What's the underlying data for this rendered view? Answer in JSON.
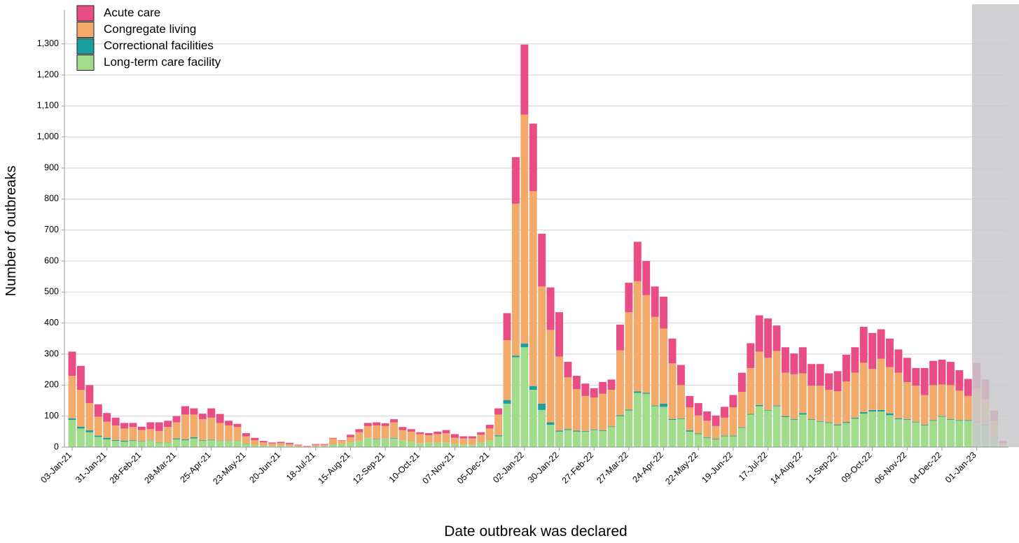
{
  "chart_data": {
    "type": "stacked-bar",
    "x_label": "Date outbreak was declared",
    "y_label": "Number of outbreaks",
    "categories": [
      "03-Jan-21",
      null,
      null,
      null,
      "31-Jan-21",
      null,
      null,
      null,
      "28-Feb-21",
      null,
      null,
      null,
      "28-Mar-21",
      null,
      null,
      null,
      "25-Apr-21",
      null,
      null,
      null,
      "23-May-21",
      null,
      null,
      null,
      "20-Jun-21",
      null,
      null,
      null,
      "18-Jul-21",
      null,
      null,
      null,
      "15-Aug-21",
      null,
      null,
      null,
      "12-Sep-21",
      null,
      null,
      null,
      "10-Oct-21",
      null,
      null,
      null,
      "07-Nov-21",
      null,
      null,
      null,
      "05-Dec-21",
      null,
      null,
      null,
      "02-Jan-22",
      null,
      null,
      null,
      "30-Jan-22",
      null,
      null,
      null,
      "27-Feb-22",
      null,
      null,
      null,
      "27-Mar-22",
      null,
      null,
      null,
      "24-Apr-22",
      null,
      null,
      null,
      "22-May-22",
      null,
      null,
      null,
      "19-Jun-22",
      null,
      null,
      null,
      "17-Jul-22",
      null,
      null,
      null,
      "14-Aug-22",
      null,
      null,
      null,
      "11-Sep-22",
      null,
      null,
      null,
      "09-Oct-22",
      null,
      null,
      null,
      "06-Nov-22",
      null,
      null,
      null,
      "04-Dec-22",
      null,
      null,
      null,
      "01-Jan-23",
      null,
      null,
      null
    ],
    "series": [
      {
        "name": "Acute care",
        "color": "#ea4c86",
        "values": [
          78,
          77,
          58,
          40,
          28,
          25,
          18,
          13,
          11,
          22,
          28,
          20,
          20,
          27,
          20,
          18,
          30,
          29,
          15,
          10,
          10,
          8,
          5,
          3,
          4,
          4,
          2,
          1,
          2,
          2,
          2,
          2,
          8,
          10,
          10,
          10,
          9,
          10,
          10,
          8,
          6,
          7,
          8,
          10,
          12,
          7,
          7,
          8,
          12,
          20,
          87,
          150,
          226,
          218,
          170,
          137,
          143,
          50,
          43,
          40,
          30,
          38,
          33,
          83,
          95,
          127,
          110,
          98,
          103,
          80,
          65,
          37,
          40,
          30,
          34,
          35,
          40,
          62,
          80,
          117,
          127,
          82,
          82,
          67,
          84,
          70,
          70,
          53,
          65,
          86,
          82,
          116,
          116,
          95,
          92,
          75,
          78,
          57,
          87,
          78,
          80,
          75,
          66,
          55,
          82,
          63,
          33,
          8
        ]
      },
      {
        "name": "Congregate living",
        "color": "#f3ab6c",
        "values": [
          137,
          119,
          88,
          61,
          52,
          47,
          39,
          43,
          36,
          35,
          36,
          49,
          52,
          80,
          73,
          68,
          71,
          57,
          49,
          44,
          24,
          15,
          10,
          8,
          8,
          6,
          4,
          2,
          5,
          4,
          20,
          10,
          17,
          28,
          38,
          44,
          40,
          50,
          33,
          32,
          30,
          23,
          27,
          30,
          20,
          20,
          20,
          25,
          38,
          67,
          193,
          490,
          738,
          628,
          378,
          298,
          239,
          167,
          134,
          113,
          103,
          118,
          118,
          209,
          314,
          355,
          315,
          286,
          242,
          179,
          108,
          74,
          58,
          53,
          41,
          58,
          91,
          114,
          148,
          172,
          168,
          176,
          140,
          145,
          128,
          108,
          114,
          105,
          107,
          131,
          145,
          159,
          132,
          165,
          149,
          147,
          120,
          116,
          96,
          113,
          102,
          110,
          95,
          78,
          108,
          82,
          49,
          7
        ]
      },
      {
        "name": "Correctional facilities",
        "color": "#1a9e9e",
        "values": [
          5,
          6,
          6,
          4,
          5,
          3,
          3,
          2,
          1,
          1,
          1,
          1,
          3,
          3,
          4,
          2,
          2,
          1,
          1,
          1,
          1,
          0,
          0,
          0,
          0,
          0,
          0,
          0,
          0,
          0,
          0,
          0,
          0,
          0,
          0,
          1,
          0,
          2,
          0,
          0,
          0,
          0,
          0,
          0,
          0,
          0,
          0,
          0,
          0,
          3,
          12,
          5,
          12,
          12,
          20,
          8,
          3,
          3,
          3,
          2,
          2,
          2,
          2,
          3,
          3,
          5,
          3,
          2,
          10,
          3,
          2,
          4,
          2,
          2,
          2,
          2,
          2,
          2,
          2,
          4,
          2,
          2,
          3,
          2,
          5,
          2,
          2,
          2,
          3,
          3,
          3,
          5,
          5,
          5,
          6,
          3,
          2,
          2,
          2,
          2,
          2,
          2,
          2,
          2,
          2,
          3,
          1,
          0
        ]
      },
      {
        "name": "Long-term care facility",
        "color": "#a0dc8c",
        "values": [
          88,
          60,
          48,
          33,
          25,
          20,
          18,
          20,
          18,
          22,
          15,
          15,
          25,
          22,
          28,
          20,
          22,
          20,
          20,
          20,
          10,
          7,
          5,
          4,
          5,
          4,
          2,
          1,
          3,
          4,
          8,
          10,
          15,
          20,
          30,
          25,
          28,
          28,
          22,
          18,
          12,
          15,
          15,
          15,
          10,
          8,
          8,
          15,
          22,
          35,
          140,
          290,
          322,
          185,
          120,
          72,
          50,
          55,
          50,
          50,
          55,
          52,
          65,
          100,
          118,
          175,
          172,
          132,
          130,
          88,
          90,
          50,
          42,
          30,
          25,
          35,
          35,
          62,
          105,
          132,
          118,
          132,
          97,
          88,
          105,
          88,
          82,
          78,
          70,
          78,
          92,
          108,
          115,
          115,
          103,
          90,
          88,
          80,
          70,
          85,
          98,
          88,
          85,
          85,
          80,
          70,
          35,
          5
        ]
      }
    ],
    "ylim": [
      0,
      1410
    ],
    "yticks": [
      0,
      100,
      200,
      300,
      400,
      500,
      600,
      700,
      800,
      900,
      {
        "value": 1000,
        "label": "1,000"
      },
      {
        "value": 1100,
        "label": "1,100"
      },
      {
        "value": 1200,
        "label": "1,200"
      },
      {
        "value": 1300,
        "label": "1,300"
      }
    ],
    "grid": true,
    "legend": "top-left"
  }
}
